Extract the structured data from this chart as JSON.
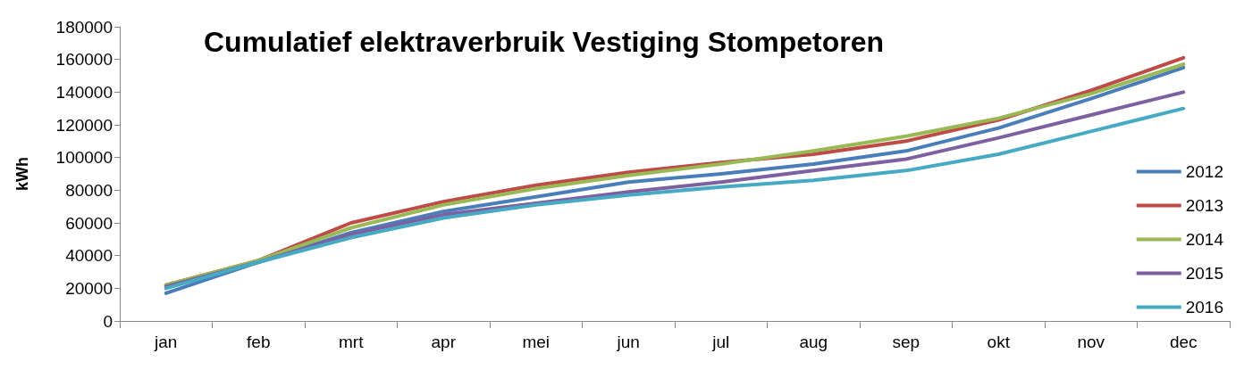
{
  "chart_data": {
    "type": "line",
    "title": "Cumulatief elektraverbruik Vestiging Stompetoren",
    "ylabel": "kWh",
    "categories": [
      "jan",
      "feb",
      "mrt",
      "apr",
      "mei",
      "jun",
      "jul",
      "aug",
      "sep",
      "okt",
      "nov",
      "dec"
    ],
    "ylim": [
      0,
      180000
    ],
    "yticks": [
      0,
      20000,
      40000,
      60000,
      80000,
      100000,
      120000,
      140000,
      160000,
      180000
    ],
    "grid": false,
    "legend": "right",
    "marker": "none",
    "line_style": "solid",
    "series": [
      {
        "name": "2012",
        "color": "#4a7ebb",
        "values": [
          17000,
          36000,
          54000,
          67000,
          76000,
          85000,
          90000,
          96000,
          104000,
          118000,
          136000,
          155000
        ]
      },
      {
        "name": "2013",
        "color": "#be4b48",
        "values": [
          22000,
          37000,
          60000,
          73000,
          83000,
          91000,
          97000,
          102000,
          110000,
          123000,
          141000,
          161000
        ]
      },
      {
        "name": "2014",
        "color": "#98b954",
        "values": [
          22000,
          37000,
          57000,
          71000,
          81000,
          89000,
          96000,
          104000,
          113000,
          124000,
          139000,
          157000
        ]
      },
      {
        "name": "2015",
        "color": "#7d60a0",
        "values": [
          21000,
          36000,
          53000,
          65000,
          72000,
          79000,
          85000,
          92000,
          99000,
          112000,
          126000,
          140000
        ]
      },
      {
        "name": "2016",
        "color": "#46aac5",
        "values": [
          20000,
          36000,
          51000,
          63000,
          71000,
          77000,
          82000,
          86000,
          92000,
          102000,
          116000,
          130000
        ]
      }
    ]
  }
}
